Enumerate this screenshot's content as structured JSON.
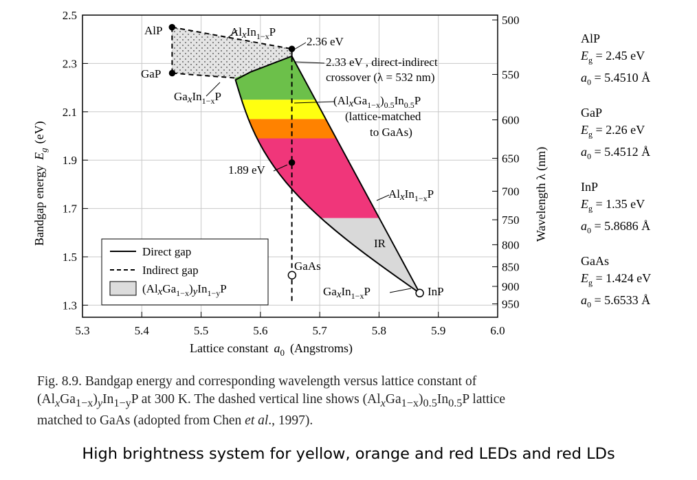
{
  "chart_data": {
    "type": "scatter",
    "xlabel_pre": "Lattice constant",
    "xlabel_sym": "a",
    "xlabel_sub": "0",
    "xlabel_post": "(Angstroms)",
    "ylabel": "Bandgap energy",
    "ylabel_sym": "E",
    "ylabel_sub": "g",
    "ylabel_unit": "(eV)",
    "y2label": "Wavelength  λ  (nm)",
    "xlim": [
      5.3,
      6.0
    ],
    "ylim": [
      1.25,
      2.5
    ],
    "xticks": [
      "5.3",
      "5.4",
      "5.5",
      "5.6",
      "5.7",
      "5.8",
      "5.9",
      "6.0"
    ],
    "yticks": [
      "1.3",
      "1.5",
      "1.7",
      "1.9",
      "2.1",
      "2.3",
      "2.5"
    ],
    "y2ticks": [
      "500",
      "550",
      "600",
      "650",
      "700",
      "750",
      "800",
      "850",
      "900",
      "950"
    ],
    "grid": true,
    "points": [
      {
        "name": "AlP",
        "x": 5.451,
        "y": 2.45,
        "filled": true
      },
      {
        "name": "GaP",
        "x": 5.4512,
        "y": 2.26,
        "filled": true
      },
      {
        "name": "InP",
        "x": 5.8686,
        "y": 1.35,
        "filled": false
      },
      {
        "name": "GaAs",
        "x": 5.6533,
        "y": 1.424,
        "filled": false
      },
      {
        "name": "",
        "x": 5.653,
        "y": 2.36,
        "filled": true
      },
      {
        "name": "",
        "x": 5.653,
        "y": 1.89,
        "filled": true
      }
    ],
    "bands": [
      {
        "name": "green",
        "color": "#6cc04a",
        "ymin": 2.15,
        "ymax": 2.33
      },
      {
        "name": "yellow",
        "color": "#ffff10",
        "ymin": 2.07,
        "ymax": 2.15
      },
      {
        "name": "orange",
        "color": "#ff8200",
        "ymin": 1.99,
        "ymax": 2.07
      },
      {
        "name": "red",
        "color": "#f0367a",
        "ymin": 1.66,
        "ymax": 1.99
      },
      {
        "name": "IR",
        "color": "#d9d9d9",
        "ymin": 1.35,
        "ymax": 1.66
      }
    ],
    "annotations": {
      "alp": "AlP",
      "gap": "GaP",
      "inp": "InP",
      "gaas": "GaAs",
      "alin_top_main": "Al",
      "alin_top_x": "x",
      "alin_top_in": "In",
      "alin_top_sub": "1−x",
      "alin_top_p": "P",
      "e236": "2.36 eV",
      "e233_a": "2.33 eV , direct-indirect",
      "e233_b": "crossover (λ = 532 nm)",
      "gain_ga": "Ga",
      "gain_x": "x",
      "gain_in": "In",
      "gain_sub": "1−x",
      "gain_p": "P",
      "algainp_a1": "(Al",
      "algainp_x": "x",
      "algainp_a2": "Ga",
      "algainp_sub1": "1−x",
      "algainp_a3": ")",
      "algainp_sub2": "0.5",
      "algainp_a4": "In",
      "algainp_sub3": "0.5",
      "algainp_a5": "P",
      "lm1": "(lattice-matched",
      "lm2": "to GaAs)",
      "e189": "1.89 eV",
      "alin_mid_main": "Al",
      "alin_mid_x": "x",
      "alin_mid_in": "In",
      "alin_mid_sub": "1−x",
      "alin_mid_p": "P",
      "ir": "IR",
      "gain_bot_ga": "Ga",
      "gain_bot_x": "x",
      "gain_bot_in": "In",
      "gain_bot_sub": "1−x",
      "gain_bot_p": "P"
    },
    "legend": {
      "direct": "Direct gap",
      "indirect": "Indirect gap",
      "region_a": "(Al",
      "region_x": "x",
      "region_b": "Ga",
      "region_sub1": "1−x",
      "region_c": ")",
      "region_y": "y",
      "region_d": "In",
      "region_sub2": "1−y",
      "region_e": "P"
    }
  },
  "side": [
    {
      "name": "AlP",
      "eg_val": "= 2.45 eV",
      "a0_val": "= 5.4510 Å"
    },
    {
      "name": "GaP",
      "eg_val": "= 2.26 eV",
      "a0_val": "= 5.4512 Å"
    },
    {
      "name": "InP",
      "eg_val": "= 1.35 eV",
      "a0_val": "= 5.8686 Å"
    },
    {
      "name": "GaAs",
      "eg_val": "= 1.424 eV",
      "a0_val": "= 5.6533 Å"
    }
  ],
  "side_eg": "E",
  "side_eg_sub": "g",
  "side_a0": "a",
  "side_a0_sub": "0",
  "caption": {
    "fig": "Fig. 8.9. Bandgap energy and corresponding wavelength versus lattice constant of",
    "l2_a": "(Al",
    "l2_x": "x",
    "l2_b": "Ga",
    "l2_sub1": "1−x",
    "l2_c": ")",
    "l2_y": "y",
    "l2_d": "In",
    "l2_sub2": "1−y",
    "l2_e": "P at 300 K. The dashed vertical line shows (Al",
    "l2_x2": "x",
    "l2_f": "Ga",
    "l2_sub3": "1−x",
    "l2_g": ")",
    "l2_sub4": "0.5",
    "l2_h": "In",
    "l2_sub5": "0.5",
    "l2_i": "P lattice",
    "l3_a": "matched to GaAs (adopted from Chen ",
    "l3_etal": "et al",
    "l3_b": "., 1997)."
  },
  "footer": "High brightness system for yellow, orange and red LEDs and red LDs"
}
